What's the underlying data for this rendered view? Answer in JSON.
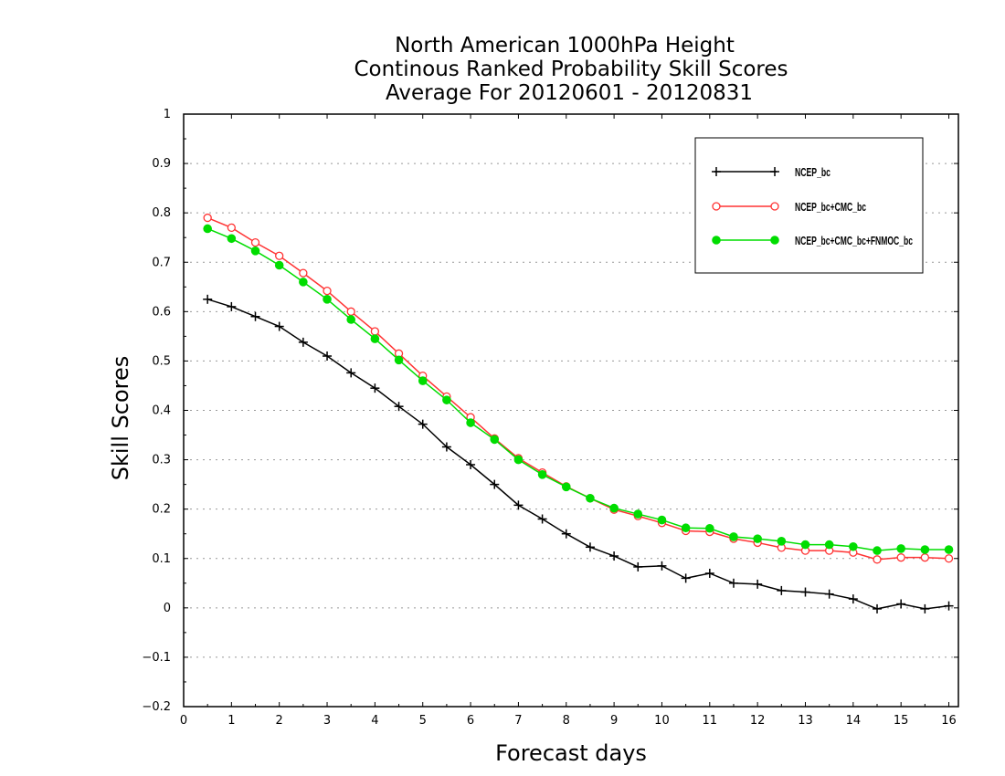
{
  "chart_data": {
    "type": "line",
    "title": [
      "North American 1000hPa Height",
      "Continous Ranked Probability Skill Scores",
      "Average For 20120601 - 20120831"
    ],
    "xlabel": "Forecast days",
    "ylabel": "Skill Scores",
    "xlim": [
      0,
      16.2
    ],
    "ylim": [
      -0.2,
      1
    ],
    "xticks": [
      0,
      1,
      2,
      3,
      4,
      5,
      6,
      7,
      8,
      9,
      10,
      11,
      12,
      13,
      14,
      15,
      16
    ],
    "yticks": [
      -0.2,
      -0.1,
      0,
      0.1,
      0.2,
      0.3,
      0.4,
      0.5,
      0.6,
      0.7,
      0.8,
      0.9,
      1
    ],
    "ytick_labels": [
      "−0.2",
      "−0.1",
      "0",
      "0.1",
      "0.2",
      "0.3",
      "0.4",
      "0.5",
      "0.6",
      "0.7",
      "0.8",
      "0.9",
      "1"
    ],
    "grid": "horizontal-dotted",
    "legend_position": "top-right",
    "x": [
      0.5,
      1,
      1.5,
      2,
      2.5,
      3,
      3.5,
      4,
      4.5,
      5,
      5.5,
      6,
      6.5,
      7,
      7.5,
      8,
      8.5,
      9,
      9.5,
      10,
      10.5,
      11,
      11.5,
      12,
      12.5,
      13,
      13.5,
      14,
      14.5,
      15,
      15.5,
      16
    ],
    "series": [
      {
        "name": "NCEP_bc",
        "color": "#000000",
        "marker": "plus",
        "values": [
          0.625,
          0.61,
          0.59,
          0.57,
          0.538,
          0.51,
          0.476,
          0.445,
          0.408,
          0.372,
          0.326,
          0.29,
          0.25,
          0.208,
          0.18,
          0.15,
          0.123,
          0.105,
          0.083,
          0.085,
          0.06,
          0.07,
          0.05,
          0.048,
          0.035,
          0.032,
          0.028,
          0.018,
          -0.002,
          0.008,
          -0.002,
          0.004
        ]
      },
      {
        "name": "NCEP_bc+CMC_bc",
        "color": "#ff3333",
        "marker": "open-circle",
        "values": [
          0.79,
          0.77,
          0.74,
          0.713,
          0.678,
          0.642,
          0.6,
          0.56,
          0.515,
          0.47,
          0.428,
          0.386,
          0.343,
          0.303,
          0.274,
          0.246,
          0.222,
          0.199,
          0.186,
          0.172,
          0.156,
          0.154,
          0.14,
          0.132,
          0.122,
          0.116,
          0.116,
          0.112,
          0.098,
          0.102,
          0.102,
          0.1
        ]
      },
      {
        "name": "NCEP_bc+CMC_bc+FNMOC_bc",
        "color": "#00dd00",
        "marker": "filled-circle",
        "values": [
          0.768,
          0.748,
          0.723,
          0.694,
          0.66,
          0.625,
          0.584,
          0.545,
          0.502,
          0.46,
          0.421,
          0.375,
          0.341,
          0.3,
          0.27,
          0.245,
          0.222,
          0.202,
          0.19,
          0.178,
          0.162,
          0.161,
          0.144,
          0.14,
          0.135,
          0.128,
          0.128,
          0.124,
          0.116,
          0.12,
          0.118,
          0.118
        ]
      }
    ]
  }
}
